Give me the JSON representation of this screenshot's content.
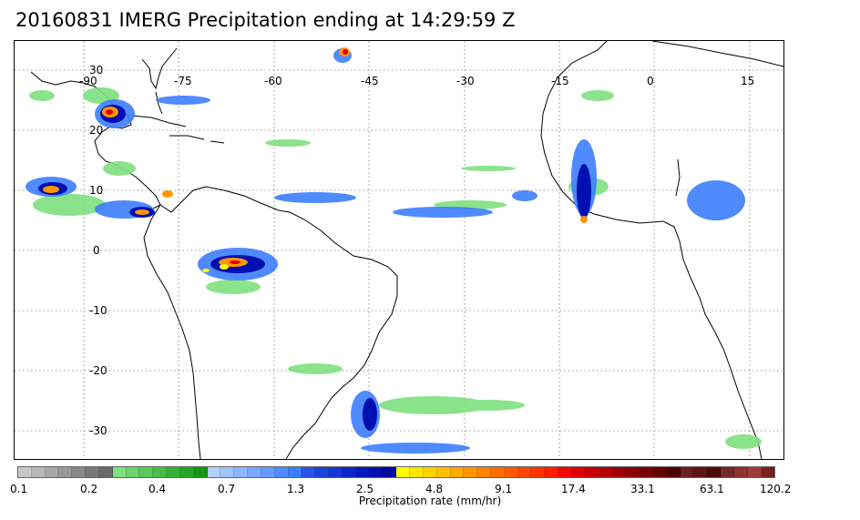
{
  "title": "20160831 IMERG Precipitation ending at 14:29:59 Z",
  "map": {
    "lon_labels": [
      "-90",
      "-75",
      "-60",
      "-45",
      "-30",
      "-15",
      "0",
      "15"
    ],
    "lat_labels": [
      "30",
      "20",
      "10",
      "0",
      "-10",
      "-20",
      "-30"
    ],
    "gridlines": "dotted",
    "features": [
      "coastlines",
      "precipitation-rate-field"
    ]
  },
  "colorbar": {
    "title": "Precipitation rate (mm/hr)",
    "tick_labels": [
      "0.1",
      "0.2",
      "0.4",
      "0.7",
      "1.3",
      "2.5",
      "4.8",
      "9.1",
      "17.4",
      "33.1",
      "63.1",
      "120.2"
    ],
    "colors": [
      "#c8c8c8",
      "#b8b8b8",
      "#a8a8a8",
      "#989898",
      "#888888",
      "#787878",
      "#686868",
      "#7ee07e",
      "#6cd46c",
      "#5ac85a",
      "#48bc48",
      "#36b036",
      "#24a424",
      "#129812",
      "#b4d2ff",
      "#a0c4ff",
      "#8cb6ff",
      "#78a8ff",
      "#649aff",
      "#508cff",
      "#3c7eff",
      "#2a52e6",
      "#1e44dc",
      "#1436d2",
      "#0a28c8",
      "#001abe",
      "#0010b0",
      "#0008a0",
      "#ffff00",
      "#ffe600",
      "#ffd200",
      "#ffbe00",
      "#ffaa00",
      "#ff9600",
      "#ff8200",
      "#ff6e00",
      "#ff5a00",
      "#ff4600",
      "#ff3200",
      "#ff1e00",
      "#f00a00",
      "#dc0000",
      "#c80000",
      "#b40000",
      "#a00000",
      "#8c0000",
      "#780000",
      "#640000",
      "#500000",
      "#6e1e1e",
      "#5e1414",
      "#4e0a0a",
      "#782828",
      "#8c3232",
      "#a03c3c",
      "#7a2020"
    ]
  }
}
